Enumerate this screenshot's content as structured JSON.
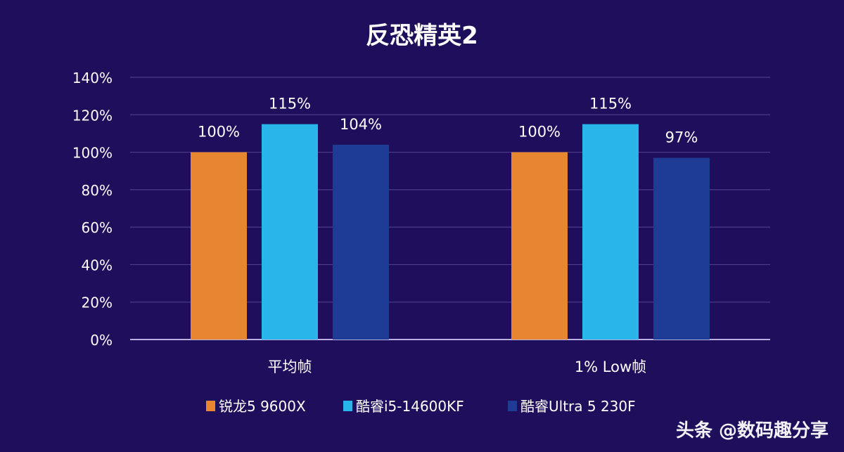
{
  "watermark": "头条 @数码趣分享",
  "chart_data": {
    "type": "bar",
    "title": "反恐精英2",
    "categories": [
      "平均帧",
      "1% Low帧"
    ],
    "series": [
      {
        "name": "锐龙5 9600X",
        "color": "#e88530",
        "values": [
          100,
          100
        ],
        "labels": [
          "100%",
          "100%"
        ]
      },
      {
        "name": "酷睿i5-14600KF",
        "color": "#29b5ea",
        "values": [
          115,
          115
        ],
        "labels": [
          "115%",
          "115%"
        ]
      },
      {
        "name": "酷睿Ultra 5 230F",
        "color": "#1e3c96",
        "values": [
          104,
          97
        ],
        "labels": [
          "104%",
          "97%"
        ]
      }
    ],
    "ylim": [
      0,
      140
    ],
    "yticks": [
      0,
      20,
      40,
      60,
      80,
      100,
      120,
      140
    ],
    "ytick_labels": [
      "0%",
      "20%",
      "40%",
      "60%",
      "80%",
      "100%",
      "120%",
      "140%"
    ],
    "grid": true,
    "legend": "bottom",
    "xlabel": "",
    "ylabel": ""
  }
}
